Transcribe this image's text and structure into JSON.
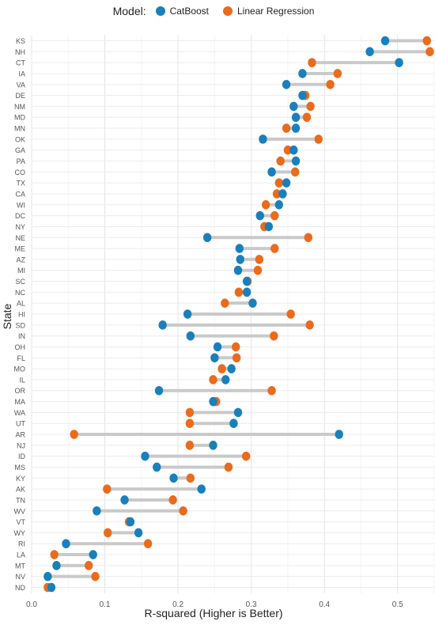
{
  "legend": {
    "title": "Model:",
    "entries": [
      {
        "name": "CatBoost",
        "color": "#1a80bb"
      },
      {
        "name": "Linear Regression",
        "color": "#ea6b1c"
      }
    ]
  },
  "chart_data": {
    "type": "dumbbell",
    "xlabel": "R-squared (Higher is Better)",
    "ylabel": "State",
    "xlim": [
      0,
      0.55
    ],
    "xticks": [
      "0.0",
      "0.1",
      "0.2",
      "0.3",
      "0.4",
      "0.5"
    ],
    "grid": true,
    "legend_position": "top",
    "categories": [
      "KS",
      "NH",
      "CT",
      "IA",
      "VA",
      "DE",
      "NM",
      "MD",
      "MN",
      "OK",
      "GA",
      "PA",
      "CO",
      "TX",
      "CA",
      "WI",
      "DC",
      "NY",
      "NE",
      "ME",
      "AZ",
      "MI",
      "SC",
      "NC",
      "AL",
      "HI",
      "SD",
      "IN",
      "OH",
      "FL",
      "MO",
      "IL",
      "OR",
      "MA",
      "WA",
      "UT",
      "AR",
      "NJ",
      "ID",
      "MS",
      "KY",
      "AK",
      "TN",
      "WV",
      "VT",
      "WY",
      "RI",
      "LA",
      "MT",
      "NV",
      "ND"
    ],
    "series": [
      {
        "name": "CatBoost",
        "color": "#1a80bb",
        "values": [
          0.483,
          0.462,
          0.502,
          0.37,
          0.348,
          0.37,
          0.358,
          0.361,
          0.361,
          0.316,
          0.358,
          0.361,
          0.328,
          0.348,
          0.343,
          0.338,
          0.312,
          0.324,
          0.24,
          0.284,
          0.285,
          0.282,
          0.294,
          0.294,
          0.302,
          0.213,
          0.179,
          0.217,
          0.254,
          0.25,
          0.273,
          0.265,
          0.174,
          0.248,
          0.282,
          0.276,
          0.42,
          0.248,
          0.155,
          0.171,
          0.194,
          0.232,
          0.127,
          0.089,
          0.135,
          0.146,
          0.047,
          0.084,
          0.034,
          0.022,
          0.027
        ]
      },
      {
        "name": "Linear Regression",
        "color": "#ea6b1c",
        "values": [
          0.54,
          0.544,
          0.383,
          0.418,
          0.408,
          0.374,
          0.381,
          0.376,
          0.348,
          0.392,
          0.35,
          0.34,
          0.36,
          0.338,
          0.335,
          0.32,
          0.332,
          0.318,
          0.378,
          0.332,
          0.311,
          0.309,
          0.295,
          0.283,
          0.264,
          0.354,
          0.38,
          0.331,
          0.279,
          0.28,
          0.26,
          0.248,
          0.328,
          0.252,
          0.216,
          0.216,
          0.058,
          0.216,
          0.293,
          0.269,
          0.217,
          0.103,
          0.193,
          0.207,
          0.133,
          0.104,
          0.159,
          0.031,
          0.078,
          0.087,
          0.022
        ]
      }
    ]
  }
}
